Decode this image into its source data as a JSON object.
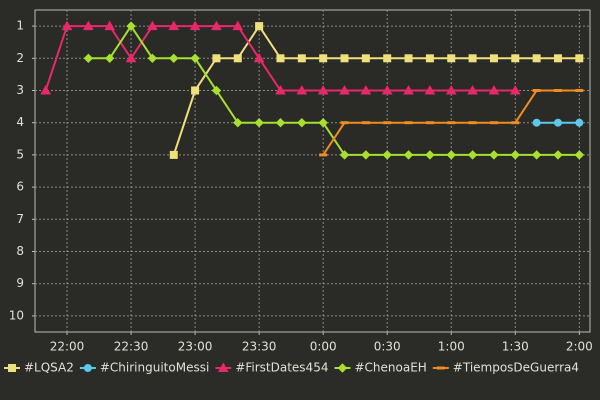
{
  "chart_data": {
    "type": "line",
    "categories": [
      null,
      "22:00",
      null,
      null,
      "22:30",
      null,
      null,
      "23:00",
      null,
      null,
      "23:30",
      null,
      null,
      "0:00",
      null,
      null,
      "0:30",
      null,
      null,
      "1:00",
      null,
      null,
      "1:30",
      null,
      null,
      "2:00"
    ],
    "ylim": [
      10.5,
      0.5
    ],
    "yticks": [
      1,
      2,
      3,
      4,
      5,
      6,
      7,
      8,
      9,
      10
    ],
    "grid": true,
    "series": [
      {
        "name": "#LQSA2",
        "color": "#f0e07c",
        "marker": "square",
        "values": [
          null,
          null,
          null,
          null,
          null,
          null,
          5,
          3,
          2,
          2,
          1,
          2,
          2,
          2,
          2,
          2,
          2,
          2,
          2,
          2,
          2,
          2,
          2,
          2,
          2,
          2
        ]
      },
      {
        "name": "#ChiringuitoMessi",
        "color": "#5cc8ea",
        "marker": "circle",
        "values": [
          null,
          null,
          null,
          null,
          null,
          null,
          null,
          null,
          null,
          null,
          null,
          null,
          null,
          null,
          null,
          null,
          null,
          null,
          null,
          null,
          null,
          null,
          null,
          4,
          4,
          4
        ]
      },
      {
        "name": "#FirstDates454",
        "color": "#e8286c",
        "marker": "triangle",
        "values": [
          3,
          1,
          1,
          1,
          2,
          1,
          1,
          1,
          1,
          1,
          2,
          3,
          3,
          3,
          3,
          3,
          3,
          3,
          3,
          3,
          3,
          3,
          3,
          null,
          null,
          null
        ]
      },
      {
        "name": "#ChenoaEH",
        "color": "#a8e030",
        "marker": "diamond",
        "values": [
          null,
          null,
          2,
          2,
          1,
          2,
          2,
          2,
          3,
          4,
          4,
          4,
          4,
          4,
          5,
          5,
          5,
          5,
          5,
          5,
          5,
          5,
          5,
          5,
          5,
          5
        ]
      },
      {
        "name": "#TiemposDeGuerra4",
        "color": "#f08c20",
        "marker": "dash",
        "values": [
          null,
          null,
          null,
          null,
          null,
          null,
          null,
          null,
          null,
          null,
          null,
          null,
          null,
          5,
          4,
          4,
          4,
          4,
          4,
          4,
          4,
          4,
          4,
          3,
          3,
          3
        ]
      }
    ]
  }
}
